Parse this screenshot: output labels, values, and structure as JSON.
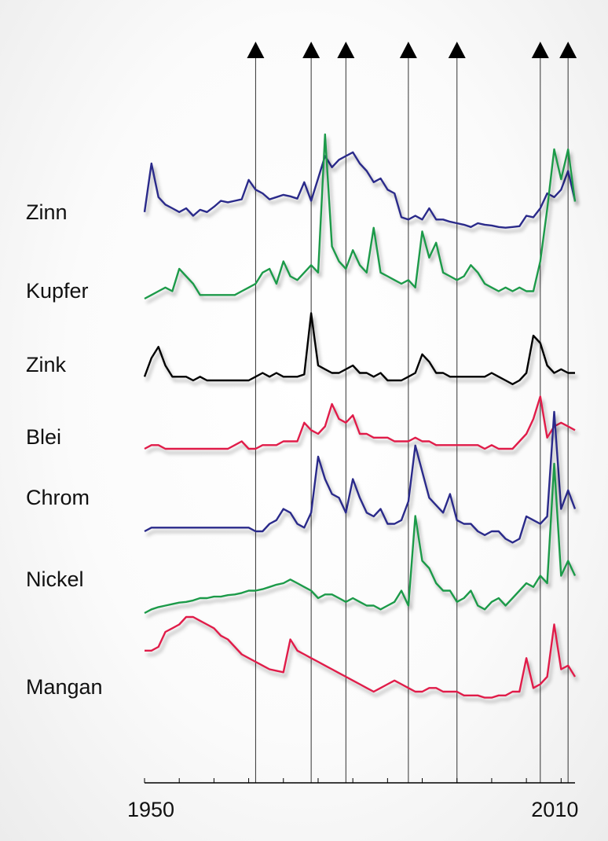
{
  "chart_data": {
    "type": "line",
    "title": "",
    "xlabel": "",
    "ylabel": "",
    "xlim": [
      1950,
      2012
    ],
    "x_tick_labels": [
      "1950",
      "2010"
    ],
    "x_ticks_labeled": [
      1950,
      2010
    ],
    "x_ticks_minor": [
      1950,
      1955,
      1960,
      1965,
      1970,
      1975,
      1980,
      1985,
      1990,
      1995,
      2000,
      2005,
      2010
    ],
    "event_markers": [
      1966,
      1974,
      1979,
      1988,
      1995,
      2007,
      2011
    ],
    "grid": false,
    "legend": "none",
    "series_note": "relative price index per metal, each series stacked in its own row",
    "series": [
      {
        "name": "Zinn",
        "color": "#2a2a8a",
        "x": [
          1950,
          1951,
          1952,
          1953,
          1954,
          1955,
          1956,
          1957,
          1958,
          1959,
          1960,
          1961,
          1962,
          1963,
          1964,
          1965,
          1966,
          1967,
          1968,
          1969,
          1970,
          1971,
          1972,
          1973,
          1974,
          1975,
          1976,
          1977,
          1978,
          1979,
          1980,
          1981,
          1982,
          1983,
          1984,
          1985,
          1986,
          1987,
          1988,
          1989,
          1990,
          1991,
          1992,
          1993,
          1994,
          1995,
          1996,
          1997,
          1998,
          1999,
          2000,
          2001,
          2002,
          2003,
          2004,
          2005,
          2006,
          2007,
          2008,
          2009,
          2010,
          2011,
          2012
        ],
        "values": [
          0.15,
          0.8,
          0.35,
          0.25,
          0.2,
          0.15,
          0.2,
          0.1,
          0.18,
          0.15,
          0.22,
          0.3,
          0.28,
          0.3,
          0.32,
          0.58,
          0.45,
          0.4,
          0.32,
          0.35,
          0.38,
          0.36,
          0.33,
          0.55,
          0.3,
          0.6,
          0.9,
          0.75,
          0.85,
          0.9,
          0.95,
          0.8,
          0.7,
          0.55,
          0.6,
          0.45,
          0.4,
          0.08,
          0.05,
          0.1,
          0.05,
          0.2,
          0.05,
          0.05,
          0.02,
          0.0,
          -0.02,
          -0.05,
          0.0,
          -0.02,
          -0.03,
          -0.05,
          -0.06,
          -0.05,
          -0.04,
          0.1,
          0.08,
          0.2,
          0.4,
          0.35,
          0.45,
          0.7,
          0.3
        ]
      },
      {
        "name": "Kupfer",
        "color": "#1f9a4a",
        "x": [
          1950,
          1951,
          1952,
          1953,
          1954,
          1955,
          1956,
          1957,
          1958,
          1959,
          1960,
          1961,
          1962,
          1963,
          1964,
          1965,
          1966,
          1967,
          1968,
          1969,
          1970,
          1971,
          1972,
          1973,
          1974,
          1975,
          1976,
          1977,
          1978,
          1979,
          1980,
          1981,
          1982,
          1983,
          1984,
          1985,
          1986,
          1987,
          1988,
          1989,
          1990,
          1991,
          1992,
          1993,
          1994,
          1995,
          1996,
          1997,
          1998,
          1999,
          2000,
          2001,
          2002,
          2003,
          2004,
          2005,
          2006,
          2007,
          2008,
          2009,
          2010,
          2011,
          2012
        ],
        "values": [
          0.0,
          0.05,
          0.1,
          0.15,
          0.1,
          0.4,
          0.3,
          0.2,
          0.05,
          0.05,
          0.05,
          0.05,
          0.05,
          0.05,
          0.1,
          0.15,
          0.2,
          0.35,
          0.4,
          0.2,
          0.5,
          0.3,
          0.25,
          0.35,
          0.45,
          0.35,
          2.2,
          0.7,
          0.5,
          0.4,
          0.65,
          0.45,
          0.35,
          0.95,
          0.35,
          0.3,
          0.25,
          0.2,
          0.25,
          0.15,
          0.9,
          0.55,
          0.75,
          0.35,
          0.3,
          0.25,
          0.3,
          0.45,
          0.35,
          0.2,
          0.15,
          0.1,
          0.15,
          0.1,
          0.15,
          0.1,
          0.1,
          0.5,
          1.2,
          2.0,
          1.6,
          2.0,
          1.3
        ]
      },
      {
        "name": "Zink",
        "color": "#000000",
        "x": [
          1950,
          1951,
          1952,
          1953,
          1954,
          1955,
          1956,
          1957,
          1958,
          1959,
          1960,
          1961,
          1962,
          1963,
          1964,
          1965,
          1966,
          1967,
          1968,
          1969,
          1970,
          1971,
          1972,
          1973,
          1974,
          1975,
          1976,
          1977,
          1978,
          1979,
          1980,
          1981,
          1982,
          1983,
          1984,
          1985,
          1986,
          1987,
          1988,
          1989,
          1990,
          1991,
          1992,
          1993,
          1994,
          1995,
          1996,
          1997,
          1998,
          1999,
          2000,
          2001,
          2002,
          2003,
          2004,
          2005,
          2006,
          2007,
          2008,
          2009,
          2010,
          2011,
          2012
        ],
        "values": [
          0.05,
          0.3,
          0.45,
          0.2,
          0.05,
          0.05,
          0.05,
          0.0,
          0.05,
          0.0,
          0.0,
          0.0,
          0.0,
          0.0,
          0.0,
          0.0,
          0.05,
          0.1,
          0.05,
          0.1,
          0.05,
          0.05,
          0.05,
          0.08,
          0.9,
          0.2,
          0.15,
          0.1,
          0.1,
          0.15,
          0.2,
          0.1,
          0.1,
          0.05,
          0.1,
          0.0,
          0.0,
          0.0,
          0.05,
          0.1,
          0.35,
          0.25,
          0.1,
          0.1,
          0.05,
          0.05,
          0.05,
          0.05,
          0.05,
          0.05,
          0.1,
          0.05,
          0.0,
          -0.05,
          0.0,
          0.1,
          0.6,
          0.5,
          0.2,
          0.1,
          0.15,
          0.1,
          0.1
        ]
      },
      {
        "name": "Blei",
        "color": "#e01e4a",
        "x": [
          1950,
          1951,
          1952,
          1953,
          1954,
          1955,
          1956,
          1957,
          1958,
          1959,
          1960,
          1961,
          1962,
          1963,
          1964,
          1965,
          1966,
          1967,
          1968,
          1969,
          1970,
          1971,
          1972,
          1973,
          1974,
          1975,
          1976,
          1977,
          1978,
          1979,
          1980,
          1981,
          1982,
          1983,
          1984,
          1985,
          1986,
          1987,
          1988,
          1989,
          1990,
          1991,
          1992,
          1993,
          1994,
          1995,
          1996,
          1997,
          1998,
          1999,
          2000,
          2001,
          2002,
          2003,
          2004,
          2005,
          2006,
          2007,
          2008,
          2009,
          2010,
          2011,
          2012
        ],
        "values": [
          0.0,
          0.05,
          0.05,
          0.0,
          0.0,
          0.0,
          0.0,
          0.0,
          0.0,
          0.0,
          0.0,
          0.0,
          0.0,
          0.05,
          0.1,
          0.0,
          0.0,
          0.05,
          0.05,
          0.05,
          0.1,
          0.1,
          0.1,
          0.35,
          0.25,
          0.2,
          0.3,
          0.6,
          0.4,
          0.35,
          0.45,
          0.2,
          0.2,
          0.15,
          0.15,
          0.15,
          0.1,
          0.1,
          0.1,
          0.15,
          0.1,
          0.1,
          0.05,
          0.05,
          0.05,
          0.05,
          0.05,
          0.05,
          0.05,
          0.0,
          0.05,
          0.0,
          0.0,
          0.0,
          0.1,
          0.2,
          0.4,
          0.7,
          0.15,
          0.3,
          0.35,
          0.3,
          0.25
        ]
      },
      {
        "name": "Chrom",
        "color": "#2a2a8a",
        "x": [
          1950,
          1951,
          1952,
          1953,
          1954,
          1955,
          1956,
          1957,
          1958,
          1959,
          1960,
          1961,
          1962,
          1963,
          1964,
          1965,
          1966,
          1967,
          1968,
          1969,
          1970,
          1971,
          1972,
          1973,
          1974,
          1975,
          1976,
          1977,
          1978,
          1979,
          1980,
          1981,
          1982,
          1983,
          1984,
          1985,
          1986,
          1987,
          1988,
          1989,
          1990,
          1991,
          1992,
          1993,
          1994,
          1995,
          1996,
          1997,
          1998,
          1999,
          2000,
          2001,
          2002,
          2003,
          2004,
          2005,
          2006,
          2007,
          2008,
          2009,
          2010,
          2011,
          2012
        ],
        "values": [
          0.0,
          0.05,
          0.05,
          0.05,
          0.05,
          0.05,
          0.05,
          0.05,
          0.05,
          0.05,
          0.05,
          0.05,
          0.05,
          0.05,
          0.05,
          0.05,
          0.0,
          0.0,
          0.1,
          0.15,
          0.3,
          0.25,
          0.1,
          0.05,
          0.25,
          1.0,
          0.7,
          0.5,
          0.45,
          0.25,
          0.7,
          0.45,
          0.25,
          0.2,
          0.3,
          0.1,
          0.1,
          0.15,
          0.4,
          1.15,
          0.8,
          0.45,
          0.35,
          0.25,
          0.5,
          0.15,
          0.1,
          0.1,
          0.0,
          -0.05,
          0.0,
          0.0,
          -0.1,
          -0.15,
          -0.1,
          0.2,
          0.15,
          0.1,
          0.2,
          1.6,
          0.3,
          0.55,
          0.3
        ]
      },
      {
        "name": "Nickel",
        "color": "#1f9a4a",
        "x": [
          1950,
          1951,
          1952,
          1953,
          1954,
          1955,
          1956,
          1957,
          1958,
          1959,
          1960,
          1961,
          1962,
          1963,
          1964,
          1965,
          1966,
          1967,
          1968,
          1969,
          1970,
          1971,
          1972,
          1973,
          1974,
          1975,
          1976,
          1977,
          1978,
          1979,
          1980,
          1981,
          1982,
          1983,
          1984,
          1985,
          1986,
          1987,
          1988,
          1989,
          1990,
          1991,
          1992,
          1993,
          1994,
          1995,
          1996,
          1997,
          1998,
          1999,
          2000,
          2001,
          2002,
          2003,
          2004,
          2005,
          2006,
          2007,
          2008,
          2009,
          2010,
          2011,
          2012
        ],
        "values": [
          0.0,
          0.05,
          0.08,
          0.1,
          0.12,
          0.14,
          0.15,
          0.17,
          0.2,
          0.2,
          0.22,
          0.22,
          0.24,
          0.25,
          0.27,
          0.3,
          0.3,
          0.32,
          0.35,
          0.38,
          0.4,
          0.45,
          0.4,
          0.35,
          0.3,
          0.2,
          0.25,
          0.25,
          0.2,
          0.15,
          0.2,
          0.15,
          0.1,
          0.1,
          0.05,
          0.1,
          0.15,
          0.3,
          0.1,
          1.3,
          0.7,
          0.6,
          0.4,
          0.3,
          0.3,
          0.15,
          0.2,
          0.3,
          0.1,
          0.05,
          0.15,
          0.2,
          0.1,
          0.2,
          0.3,
          0.4,
          0.35,
          0.5,
          0.4,
          2.0,
          0.5,
          0.7,
          0.5
        ]
      },
      {
        "name": "Mangan",
        "color": "#e01e4a",
        "x": [
          1950,
          1951,
          1952,
          1953,
          1954,
          1955,
          1956,
          1957,
          1958,
          1959,
          1960,
          1961,
          1962,
          1963,
          1964,
          1965,
          1966,
          1967,
          1968,
          1969,
          1970,
          1971,
          1972,
          1973,
          1974,
          1975,
          1976,
          1977,
          1978,
          1979,
          1980,
          1981,
          1982,
          1983,
          1984,
          1985,
          1986,
          1987,
          1988,
          1989,
          1990,
          1991,
          1992,
          1993,
          1994,
          1995,
          1996,
          1997,
          1998,
          1999,
          2000,
          2001,
          2002,
          2003,
          2004,
          2005,
          2006,
          2007,
          2008,
          2009,
          2010,
          2011,
          2012
        ],
        "values": [
          0.55,
          0.55,
          0.6,
          0.8,
          0.85,
          0.9,
          1.0,
          1.0,
          0.95,
          0.9,
          0.85,
          0.75,
          0.7,
          0.6,
          0.5,
          0.45,
          0.4,
          0.35,
          0.3,
          0.28,
          0.26,
          0.7,
          0.55,
          0.5,
          0.45,
          0.4,
          0.35,
          0.3,
          0.25,
          0.2,
          0.15,
          0.1,
          0.05,
          0.0,
          0.05,
          0.1,
          0.15,
          0.1,
          0.05,
          0.0,
          0.0,
          0.05,
          0.05,
          0.0,
          0.0,
          0.0,
          -0.05,
          -0.05,
          -0.05,
          -0.08,
          -0.08,
          -0.05,
          -0.05,
          0.0,
          0.0,
          0.45,
          0.05,
          0.1,
          0.2,
          0.9,
          0.3,
          0.35,
          0.2
        ]
      }
    ]
  }
}
